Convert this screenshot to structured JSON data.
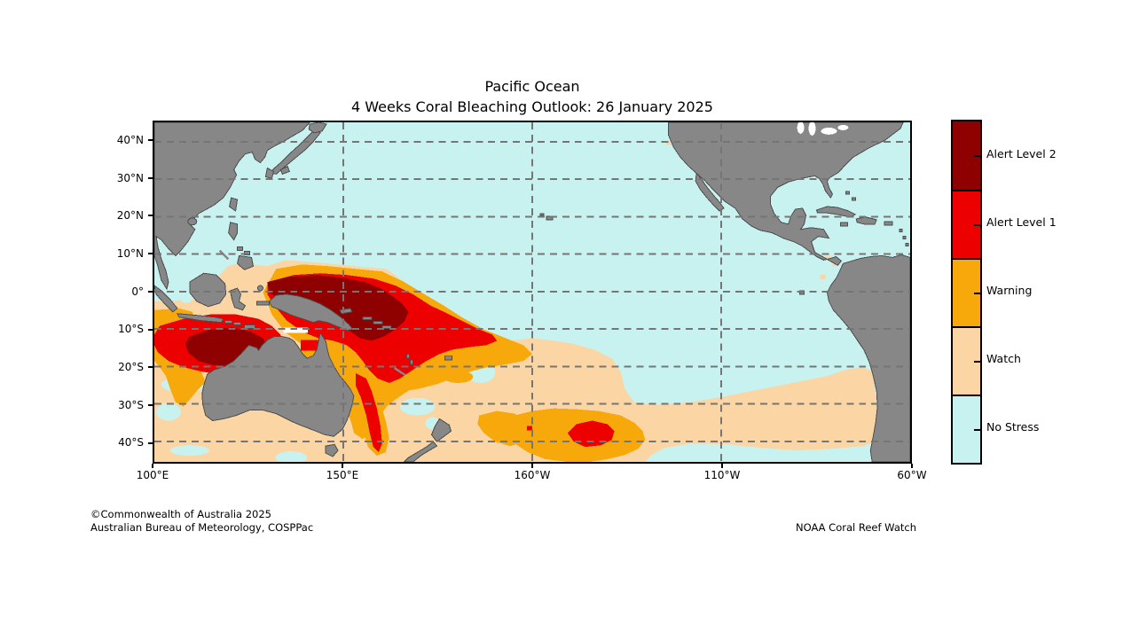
{
  "title": {
    "line1": "Pacific Ocean",
    "line2": "4 Weeks Coral Bleaching Outlook: 26 January 2025"
  },
  "axes": {
    "lat": [
      "40°N",
      "30°N",
      "20°N",
      "10°N",
      "0°",
      "10°S",
      "20°S",
      "30°S",
      "40°S"
    ],
    "lon": [
      "100°E",
      "150°E",
      "160°W",
      "110°W",
      "60°W"
    ]
  },
  "legend": {
    "items": [
      {
        "label": "Alert Level 2",
        "color": "#8F0000"
      },
      {
        "label": "Alert Level 1",
        "color": "#EC0000"
      },
      {
        "label": "Warning",
        "color": "#F7A80B"
      },
      {
        "label": "Watch",
        "color": "#FBD6A4"
      },
      {
        "label": "No Stress",
        "color": "#C8F2F0"
      }
    ]
  },
  "map_colors": {
    "ocean": "#C8F2F0",
    "watch": "#FBD6A4",
    "warning": "#F7A80B",
    "alert1": "#EC0000",
    "alert2": "#8F0000",
    "land": "#878787",
    "coast": "#4D4D4D",
    "grid": "#757575",
    "nodata": "#FFFFFF"
  },
  "credits": {
    "line1": "©Commonwealth of Australia 2025",
    "line2": "Australian Bureau of Meteorology, COSPPac",
    "agency": "NOAA Coral Reef Watch"
  }
}
